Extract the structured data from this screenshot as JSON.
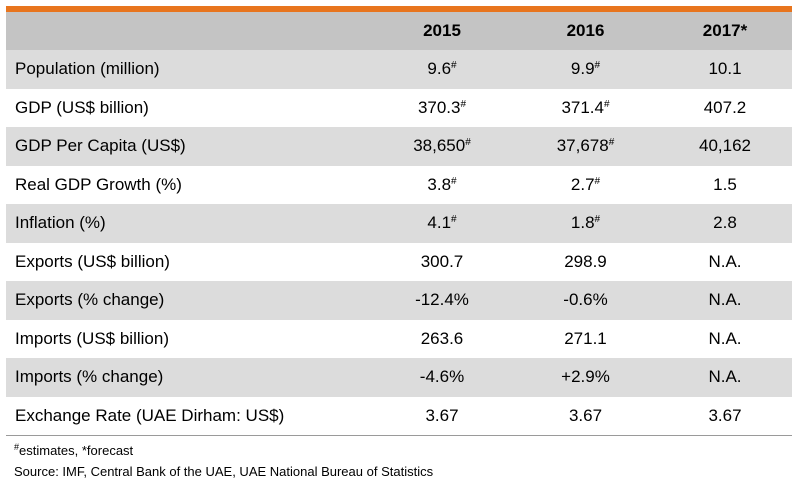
{
  "accent_color": "#e8751e",
  "header": {
    "label": "",
    "years": [
      "2015",
      "2016",
      "2017*"
    ]
  },
  "rows": [
    {
      "label": "Population (million)",
      "values": [
        {
          "v": "9.6",
          "sup": "#"
        },
        {
          "v": "9.9",
          "sup": "#"
        },
        {
          "v": "10.1",
          "sup": ""
        }
      ]
    },
    {
      "label": "GDP (US$ billion)",
      "values": [
        {
          "v": "370.3",
          "sup": "#"
        },
        {
          "v": "371.4",
          "sup": "#"
        },
        {
          "v": "407.2",
          "sup": ""
        }
      ]
    },
    {
      "label": "GDP Per Capita (US$)",
      "values": [
        {
          "v": "38,650",
          "sup": "#"
        },
        {
          "v": "37,678",
          "sup": "#"
        },
        {
          "v": "40,162",
          "sup": ""
        }
      ]
    },
    {
      "label": "Real GDP Growth (%)",
      "values": [
        {
          "v": "3.8",
          "sup": "#"
        },
        {
          "v": "2.7",
          "sup": "#"
        },
        {
          "v": "1.5",
          "sup": ""
        }
      ]
    },
    {
      "label": "Inflation (%)",
      "values": [
        {
          "v": "4.1",
          "sup": "#"
        },
        {
          "v": "1.8",
          "sup": "#"
        },
        {
          "v": "2.8",
          "sup": ""
        }
      ]
    },
    {
      "label": "Exports (US$ billion)",
      "values": [
        {
          "v": "300.7",
          "sup": ""
        },
        {
          "v": "298.9",
          "sup": ""
        },
        {
          "v": "N.A.",
          "sup": ""
        }
      ]
    },
    {
      "label": "Exports (% change)",
      "values": [
        {
          "v": "-12.4%",
          "sup": ""
        },
        {
          "v": "-0.6%",
          "sup": ""
        },
        {
          "v": "N.A.",
          "sup": ""
        }
      ]
    },
    {
      "label": "Imports (US$ billion)",
      "values": [
        {
          "v": "263.6",
          "sup": ""
        },
        {
          "v": "271.1",
          "sup": ""
        },
        {
          "v": "N.A.",
          "sup": ""
        }
      ]
    },
    {
      "label": "Imports (% change)",
      "values": [
        {
          "v": "-4.6%",
          "sup": ""
        },
        {
          "v": "+2.9%",
          "sup": ""
        },
        {
          "v": "N.A.",
          "sup": ""
        }
      ]
    },
    {
      "label": "Exchange Rate (UAE Dirham: US$)",
      "values": [
        {
          "v": "3.67",
          "sup": ""
        },
        {
          "v": "3.67",
          "sup": ""
        },
        {
          "v": "3.67",
          "sup": ""
        }
      ]
    }
  ],
  "notes": {
    "estimates_sup": "#",
    "estimates_text": "estimates, *forecast",
    "source": "Source: IMF, Central Bank of the UAE, UAE National Bureau of Statistics"
  }
}
